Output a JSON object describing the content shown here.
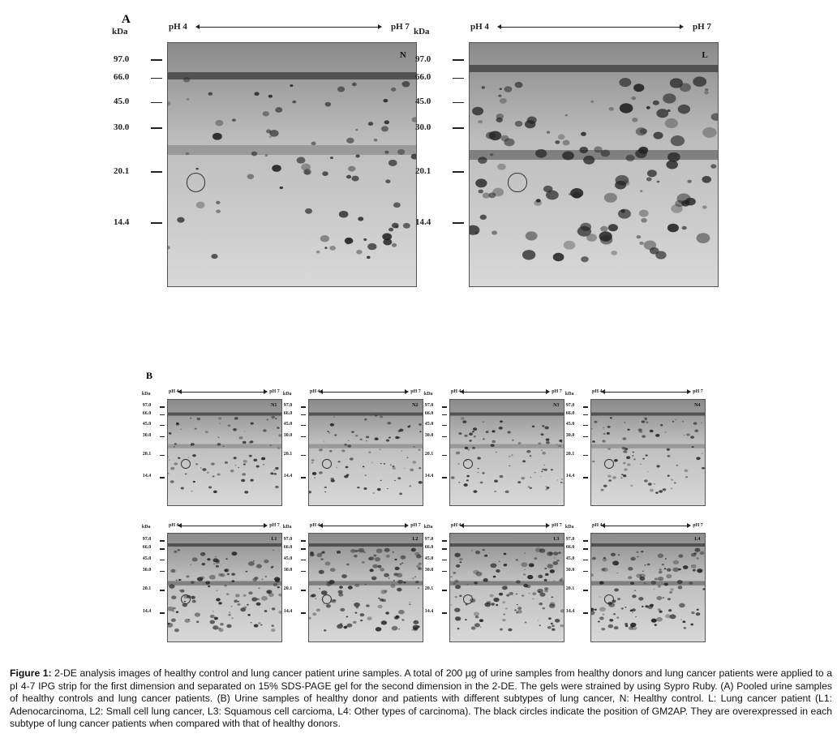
{
  "panel_a": {
    "label": "A",
    "unit": "kDa",
    "ph_left": "pH 4",
    "ph_right": "pH 7",
    "markers": [
      "97.0",
      "66.0",
      "45.0",
      "30.0",
      "20.1",
      "14.4"
    ],
    "gels": [
      {
        "tag": "N"
      },
      {
        "tag": "L"
      }
    ]
  },
  "panel_b": {
    "label": "B",
    "unit": "kDa",
    "ph_left": "pH 4",
    "ph_right": "pH 7",
    "markers": [
      "97.0",
      "66.0",
      "45.0",
      "30.0",
      "20.1",
      "14.4"
    ],
    "gels": [
      {
        "tag": "N1"
      },
      {
        "tag": "N2"
      },
      {
        "tag": "N3"
      },
      {
        "tag": "N4"
      },
      {
        "tag": "L1"
      },
      {
        "tag": "L2"
      },
      {
        "tag": "L3"
      },
      {
        "tag": "L4"
      }
    ]
  },
  "caption": {
    "lead": "Figure 1:",
    "text": " 2-DE analysis images of healthy control and lung cancer patient urine samples. A total of 200 µg of urine samples from healthy donors and lung cancer patients were applied to a pI 4-7 IPG strip for the first dimension and separated on 15% SDS-PAGE gel for the second dimension in the 2-DE. The gels were strained by using Sypro Ruby. (A) Pooled urine samples of healthy controls and lung cancer patients. (B) Urine samples of healthy donor and patients with different subtypes of lung cancer, N: Healthy control. L: Lung cancer patient (L1: Adenocarcinoma, L2: Small cell lung cancer, L3: Squamous cell carcioma, L4: Other types of carcinoma). The black circles indicate the position of GM2AP. They are overexpressed in each subtype of lung cancer patients when compared with that of healthy donors."
  }
}
